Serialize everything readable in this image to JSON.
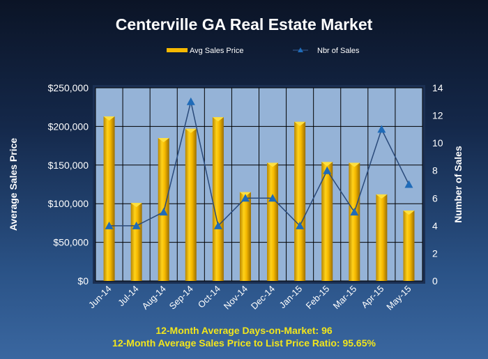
{
  "chart_data": {
    "type": "bar+line",
    "title": "Centerville GA Real Estate Market",
    "categories": [
      "Jun-14",
      "Jul-14",
      "Aug-14",
      "Sep-14",
      "Oct-14",
      "Nov-14",
      "Dec-14",
      "Jan-15",
      "Feb-15",
      "Mar-15",
      "Apr-15",
      "May-15"
    ],
    "series": [
      {
        "name": "Avg Sales Price",
        "type": "bar",
        "axis": "left",
        "color": "#f5b800",
        "values": [
          213000,
          101000,
          185000,
          197000,
          212000,
          115000,
          153000,
          206000,
          154000,
          153000,
          112000,
          91000
        ]
      },
      {
        "name": "Nbr of Sales",
        "type": "line",
        "axis": "right",
        "color": "#1f6bb8",
        "values": [
          4,
          4,
          5,
          13,
          4,
          6,
          6,
          4,
          8,
          5,
          11,
          7
        ]
      }
    ],
    "ylabel": "Average Sales Price",
    "y2label": "Number of Sales",
    "ylim": [
      0,
      250000
    ],
    "y2lim": [
      0,
      14
    ],
    "yticks": [
      "$0",
      "$50,000",
      "$100,000",
      "$150,000",
      "$200,000",
      "$250,000"
    ],
    "y2ticks": [
      "0",
      "2",
      "4",
      "6",
      "8",
      "10",
      "12",
      "14"
    ],
    "grid": true,
    "legend": "top",
    "plot_background": "#95b3d7"
  },
  "footer": {
    "line1": "12-Month  Average Days-on-Market:  96",
    "line2": "12-Month  Average Sales Price to List Price Ratio:  95.65%"
  }
}
